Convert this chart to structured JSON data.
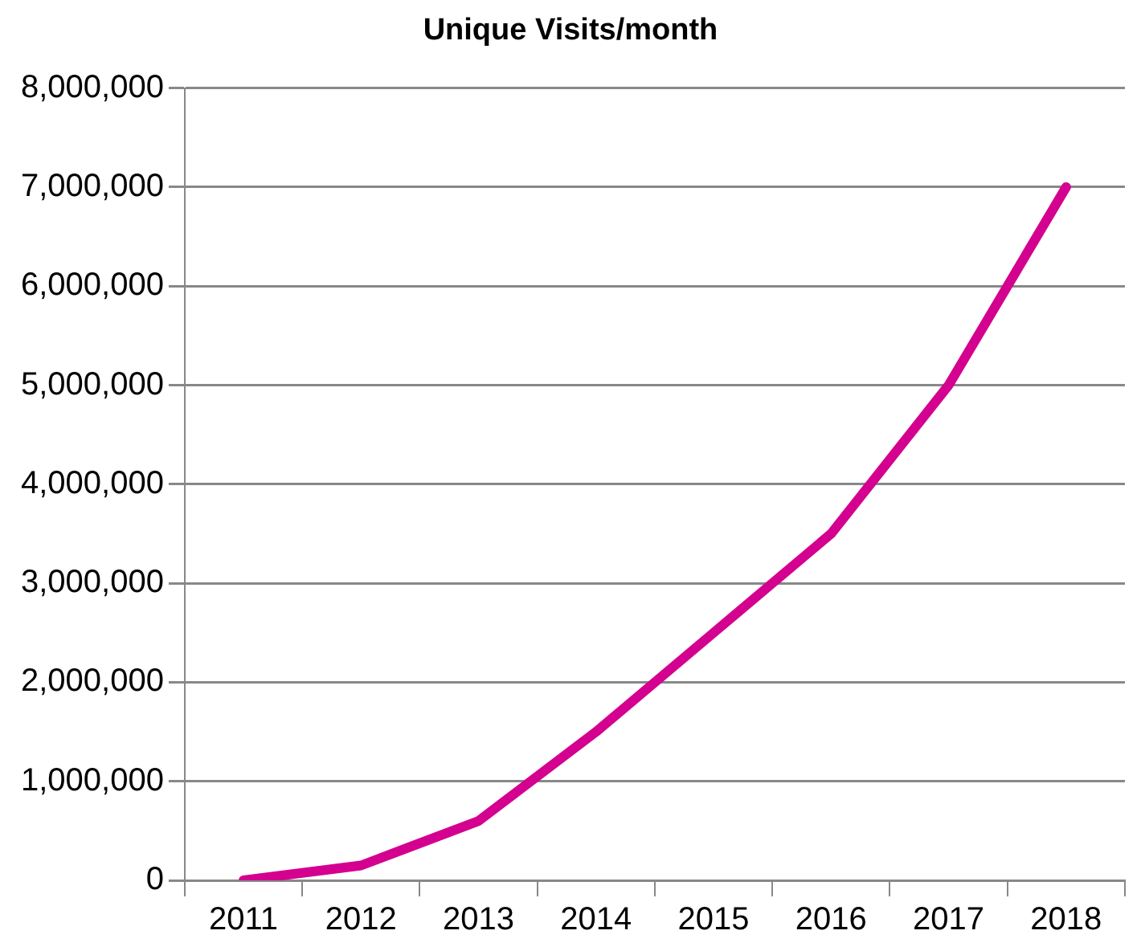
{
  "chart_data": {
    "type": "line",
    "title": "Unique Visits/month",
    "categories": [
      "2011",
      "2012",
      "2013",
      "2014",
      "2015",
      "2016",
      "2017",
      "2018"
    ],
    "series": [
      {
        "color": "#d4008f",
        "values": [
          0,
          150000,
          600000,
          1500000,
          2500000,
          3500000,
          5000000,
          7000000
        ]
      }
    ],
    "ylim": [
      0,
      8000000
    ],
    "yticks": [
      {
        "value": 0,
        "label": "0"
      },
      {
        "value": 1000000,
        "label": "1,000,000"
      },
      {
        "value": 2000000,
        "label": "2,000,000"
      },
      {
        "value": 3000000,
        "label": "3,000,000"
      },
      {
        "value": 4000000,
        "label": "4,000,000"
      },
      {
        "value": 5000000,
        "label": "5,000,000"
      },
      {
        "value": 6000000,
        "label": "6,000,000"
      },
      {
        "value": 7000000,
        "label": "7,000,000"
      },
      {
        "value": 8000000,
        "label": "8,000,000"
      }
    ],
    "grid": "y",
    "legend": false,
    "marker": "none",
    "line_style": "solid"
  }
}
